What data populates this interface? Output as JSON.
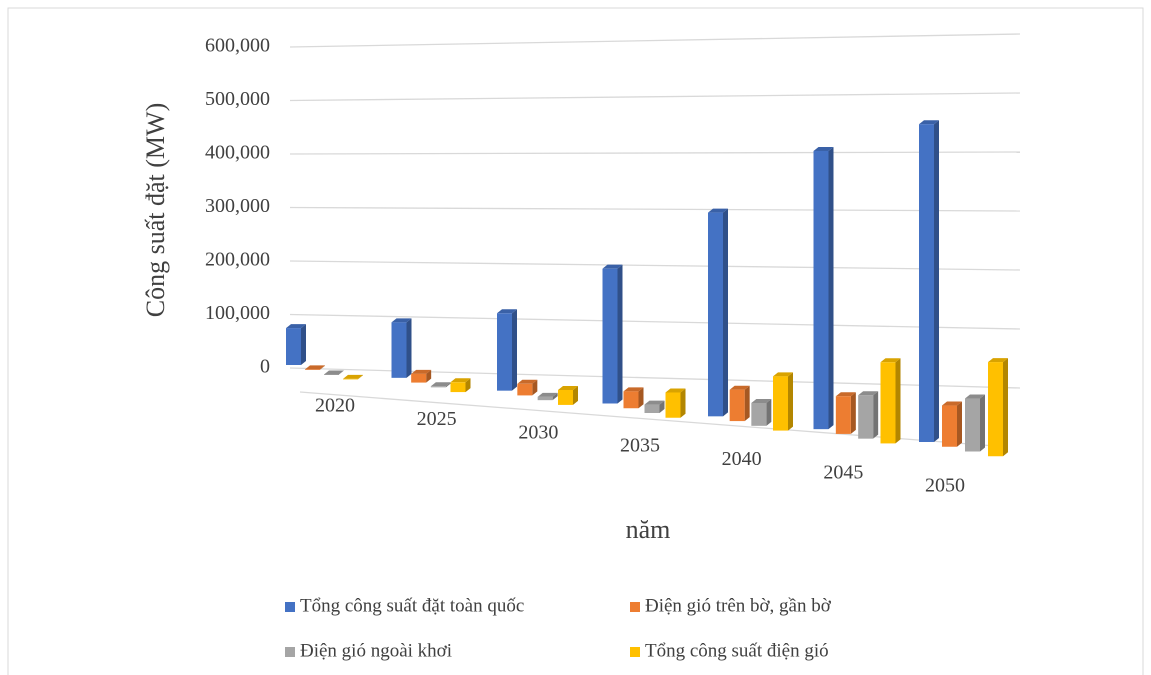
{
  "chart_data": {
    "type": "bar3d",
    "y_label": "Công suất đặt (MW)",
    "x_label": "năm",
    "categories": [
      "2020",
      "2025",
      "2030",
      "2035",
      "2040",
      "2045",
      "2050"
    ],
    "series": [
      {
        "name": "Tổng công suất đặt toàn quốc",
        "color": "#4472c4",
        "values": [
          69000,
          102000,
          140000,
          240000,
          357000,
          480000,
          540000
        ]
      },
      {
        "name": "Điện gió trên bờ, gần bờ",
        "color": "#ed7d31",
        "values": [
          600,
          16000,
          21000,
          30000,
          55000,
          65000,
          70000
        ]
      },
      {
        "name": "Điện gió ngoài khơi",
        "color": "#a5a5a5",
        "values": [
          0,
          2000,
          6000,
          15000,
          40000,
          75000,
          90000
        ]
      },
      {
        "name": "Tổng công suất điện gió",
        "color": "#ffc000",
        "values": [
          600,
          18000,
          27000,
          45000,
          95000,
          140000,
          160000
        ]
      }
    ],
    "ylim": [
      0,
      600000
    ],
    "yticks": [
      0,
      {
        "value": 100000,
        "label": "100,000"
      },
      {
        "value": 200000,
        "label": "200,000"
      },
      {
        "value": 300000,
        "label": "300,000"
      },
      {
        "value": 400000,
        "label": "400,000"
      },
      {
        "value": 500000,
        "label": "500,000"
      },
      {
        "value": 600000,
        "label": "600,000"
      }
    ],
    "grid": true,
    "legend": "bottom"
  }
}
